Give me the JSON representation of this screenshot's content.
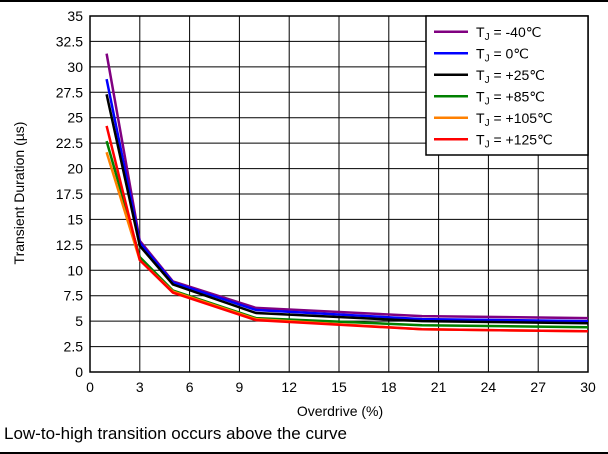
{
  "caption": "Low-to-high transition occurs above the curve",
  "chart_data": {
    "type": "line",
    "xlabel": "Overdrive (%)",
    "ylabel": "Transient Duration (µs)",
    "xlim": [
      0,
      30
    ],
    "ylim": [
      0,
      35
    ],
    "xticks": [
      0,
      3,
      6,
      9,
      12,
      15,
      18,
      21,
      24,
      27,
      30
    ],
    "yticks": [
      0,
      2.5,
      5,
      7.5,
      10,
      12.5,
      15,
      17.5,
      20,
      22.5,
      25,
      27.5,
      30,
      32.5,
      35
    ],
    "grid": true,
    "legend_position": "top-right",
    "x": [
      1,
      3,
      5,
      10,
      20,
      30
    ],
    "series": [
      {
        "name": "-40℃",
        "color": "#800080",
        "values": [
          31.3,
          12.9,
          8.9,
          6.3,
          5.5,
          5.3
        ]
      },
      {
        "name": "0℃",
        "color": "#0000ff",
        "values": [
          28.8,
          12.7,
          8.8,
          6.1,
          5.2,
          5.0
        ]
      },
      {
        "name": "+25℃",
        "color": "#000000",
        "values": [
          27.3,
          12.4,
          8.6,
          5.8,
          5.0,
          4.8
        ]
      },
      {
        "name": "+85℃",
        "color": "#008000",
        "values": [
          22.7,
          11.3,
          8.0,
          5.3,
          4.6,
          4.4
        ]
      },
      {
        "name": "+105℃",
        "color": "#ff8000",
        "values": [
          21.6,
          11.0,
          7.9,
          5.2,
          4.2,
          4.0
        ]
      },
      {
        "name": "+125℃",
        "color": "#ff0000",
        "values": [
          24.2,
          11.0,
          7.8,
          5.1,
          4.2,
          4.0
        ]
      }
    ],
    "legend_prefix": "T",
    "legend_sub": "J",
    "legend_eq": " = "
  }
}
